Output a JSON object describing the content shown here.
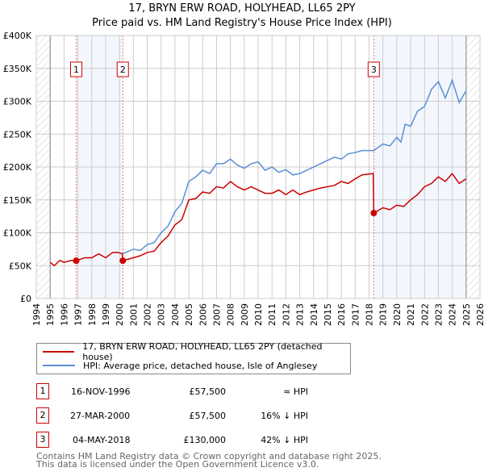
{
  "chart_data": {
    "type": "line",
    "title": "17, BRYN ERW ROAD, HOLYHEAD, LL65 2PY",
    "subtitle": "Price paid vs. HM Land Registry's House Price Index (HPI)",
    "xlim": [
      1994,
      2026
    ],
    "ylim": [
      0,
      400000
    ],
    "grid": true,
    "x_ticks": [
      "1994",
      "1995",
      "1996",
      "1997",
      "1998",
      "1999",
      "2000",
      "2001",
      "2002",
      "2003",
      "2004",
      "2005",
      "2006",
      "2007",
      "2008",
      "2009",
      "2010",
      "2011",
      "2012",
      "2013",
      "2014",
      "2015",
      "2016",
      "2017",
      "2018",
      "2019",
      "2020",
      "2021",
      "2022",
      "2023",
      "2024",
      "2025",
      "2026"
    ],
    "y_ticks": [
      {
        "v": 0,
        "label": "£0"
      },
      {
        "v": 50000,
        "label": "£50K"
      },
      {
        "v": 100000,
        "label": "£100K"
      },
      {
        "v": 150000,
        "label": "£150K"
      },
      {
        "v": 200000,
        "label": "£200K"
      },
      {
        "v": 250000,
        "label": "£250K"
      },
      {
        "v": 300000,
        "label": "£300K"
      },
      {
        "v": 350000,
        "label": "£350K"
      },
      {
        "v": 400000,
        "label": "£400K"
      }
    ],
    "data_range": [
      1995,
      2025
    ],
    "shaded_ranges": [
      [
        1996.88,
        2000.24
      ],
      [
        2018.34,
        2025
      ]
    ],
    "series": [
      {
        "name": "17, BRYN ERW ROAD, HOLYHEAD, LL65 2PY (detached house)",
        "color": "#cc0000",
        "x": [
          1995,
          1995.3,
          1995.7,
          1996,
          1996.5,
          1996.88,
          1997.5,
          1998,
          1998.5,
          1999,
          1999.5,
          1999.9,
          2000.2,
          2000.24,
          2001,
          2001.5,
          2002,
          2002.5,
          2003,
          2003.5,
          2004,
          2004.5,
          2005,
          2005.5,
          2006,
          2006.5,
          2007,
          2007.5,
          2008,
          2008.5,
          2009,
          2009.5,
          2010,
          2010.5,
          2011,
          2011.5,
          2012,
          2012.5,
          2013,
          2013.5,
          2014,
          2014.5,
          2015,
          2015.5,
          2016,
          2016.5,
          2017,
          2017.5,
          2018.3,
          2018.34,
          2019,
          2019.5,
          2020,
          2020.5,
          2021,
          2021.5,
          2022,
          2022.5,
          2023,
          2023.5,
          2024,
          2024.5,
          2025
        ],
        "y": [
          55000,
          50000,
          58000,
          55000,
          58000,
          57500,
          62000,
          62000,
          68000,
          62000,
          70000,
          70000,
          68000,
          57500,
          62000,
          65000,
          70000,
          72000,
          85000,
          95000,
          112000,
          120000,
          150000,
          152000,
          162000,
          160000,
          170000,
          168000,
          178000,
          170000,
          165000,
          170000,
          165000,
          160000,
          160000,
          165000,
          158000,
          165000,
          158000,
          162000,
          165000,
          168000,
          170000,
          172000,
          178000,
          175000,
          182000,
          188000,
          190000,
          130000,
          138000,
          135000,
          142000,
          140000,
          150000,
          158000,
          170000,
          175000,
          185000,
          178000,
          190000,
          175000,
          182000
        ]
      },
      {
        "name": "HPI: Average price, detached house, Isle of Anglesey",
        "color": "#5b8fd4",
        "x": [
          2000.24,
          2001,
          2001.5,
          2002,
          2002.5,
          2003,
          2003.5,
          2004,
          2004.5,
          2005,
          2005.5,
          2006,
          2006.5,
          2007,
          2007.5,
          2008,
          2008.5,
          2009,
          2009.5,
          2010,
          2010.5,
          2011,
          2011.5,
          2012,
          2012.5,
          2013,
          2013.5,
          2014,
          2014.5,
          2015,
          2015.5,
          2016,
          2016.5,
          2017,
          2017.5,
          2018.34,
          2019,
          2019.5,
          2020,
          2020.3,
          2020.6,
          2021,
          2021.5,
          2022,
          2022.5,
          2023,
          2023.5,
          2024,
          2024.5,
          2025
        ],
        "y": [
          68000,
          75000,
          73000,
          82000,
          85000,
          100000,
          110000,
          132000,
          145000,
          178000,
          185000,
          195000,
          190000,
          205000,
          205000,
          212000,
          203000,
          198000,
          205000,
          208000,
          195000,
          200000,
          192000,
          196000,
          188000,
          190000,
          195000,
          200000,
          205000,
          210000,
          215000,
          212000,
          220000,
          222000,
          225000,
          225000,
          235000,
          232000,
          245000,
          238000,
          265000,
          262000,
          285000,
          292000,
          318000,
          330000,
          305000,
          332000,
          298000,
          316000
        ]
      }
    ],
    "sales": [
      {
        "n": "1",
        "x": 1996.88,
        "y": 57500,
        "date": "16-NOV-1996",
        "price": "£57,500",
        "hpi": "≈ HPI"
      },
      {
        "n": "2",
        "x": 2000.24,
        "y": 57500,
        "date": "27-MAR-2000",
        "price": "£57,500",
        "hpi": "16% ↓ HPI"
      },
      {
        "n": "3",
        "x": 2018.34,
        "y": 130000,
        "date": "04-MAY-2018",
        "price": "£130,000",
        "hpi": "42% ↓ HPI"
      }
    ]
  },
  "footer": {
    "line1": "Contains HM Land Registry data © Crown copyright and database right 2025.",
    "line2": "This data is licensed under the Open Government Licence v3.0."
  }
}
